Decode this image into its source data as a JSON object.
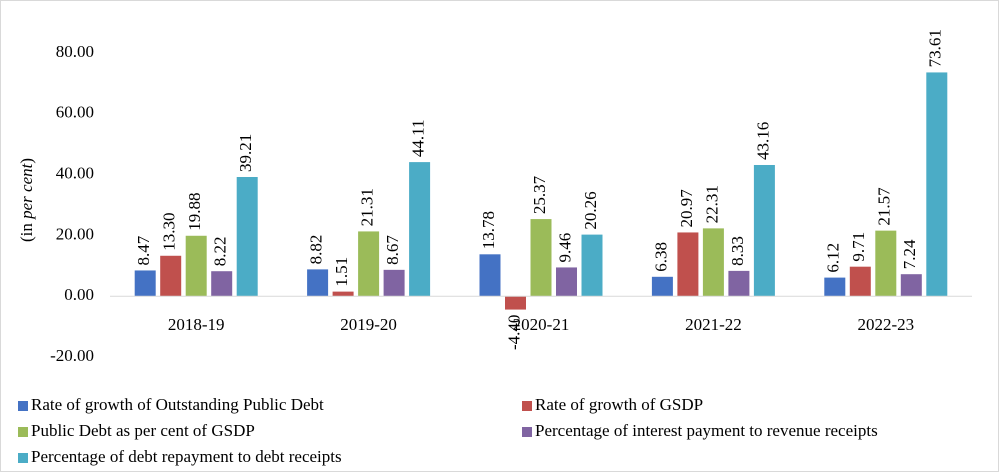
{
  "chart_data": {
    "type": "bar",
    "ylabel": [
      "(in ",
      "per cent",
      ")"
    ],
    "categories": [
      "2018-19",
      "2019-20",
      "2020-21",
      "2021-22",
      "2022-23"
    ],
    "series": [
      {
        "name": "Rate of growth of Outstanding Public Debt",
        "color": "#4472c4",
        "values": [
          8.47,
          8.82,
          13.78,
          6.38,
          6.12
        ],
        "value_labels": [
          "8.47",
          "8.82",
          "13.78",
          "6.38",
          "6.12"
        ]
      },
      {
        "name": "Rate of growth of GSDP",
        "color": "#c0504d",
        "values": [
          13.3,
          1.51,
          -4.4,
          20.97,
          9.71
        ],
        "value_labels": [
          "13.30",
          "1.51",
          "-4.40",
          "20.97",
          "9.71"
        ]
      },
      {
        "name": "Public Debt as per cent of GSDP",
        "color": "#9bbb59",
        "values": [
          19.88,
          21.31,
          25.37,
          22.31,
          21.57
        ],
        "value_labels": [
          "19.88",
          "21.31",
          "25.37",
          "22.31",
          "21.57"
        ]
      },
      {
        "name": "Percentage of interest payment to revenue receipts",
        "color": "#8064a2",
        "values": [
          8.22,
          8.67,
          9.46,
          8.33,
          7.24
        ],
        "value_labels": [
          "8.22",
          "8.67",
          "9.46",
          "8.33",
          "7.24"
        ]
      },
      {
        "name": "Percentage of debt repayment to debt receipts",
        "color": "#4bacc6",
        "values": [
          39.21,
          44.11,
          20.26,
          43.16,
          73.61
        ],
        "value_labels": [
          "39.21",
          "44.11",
          "20.26",
          "43.16",
          "73.61"
        ]
      }
    ],
    "ylim": [
      -20,
      80
    ],
    "yticks": [
      {
        "value": -20,
        "label": "-20.00"
      },
      {
        "value": 0,
        "label": "0.00"
      },
      {
        "value": 20,
        "label": "20.00"
      },
      {
        "value": 40,
        "label": "40.00"
      },
      {
        "value": 60,
        "label": "60.00"
      },
      {
        "value": 80,
        "label": "80.00"
      }
    ],
    "legend": "bottom"
  }
}
